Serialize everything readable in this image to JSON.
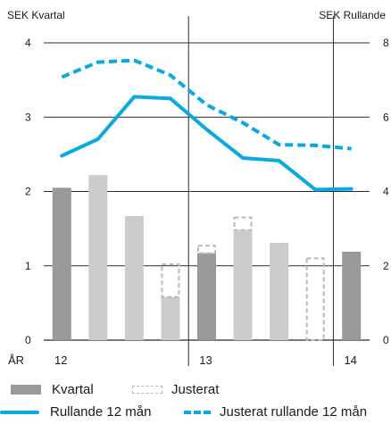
{
  "axes": {
    "left_title": "SEK Kvartal",
    "right_title": "SEK Rullande",
    "left_ticks": [
      "0",
      "1",
      "2",
      "3",
      "4"
    ],
    "right_ticks": [
      "0",
      "2",
      "4",
      "6",
      "8"
    ],
    "x_axis_label": "ÅR",
    "year_labels": [
      "12",
      "13",
      "14"
    ]
  },
  "legend": {
    "kvartal": "Kvartal",
    "justerat": "Justerat",
    "rullande": "Rullande 12 mån",
    "justerat_rullande": "Justerat rullande 12 mån"
  },
  "colors": {
    "bar_dark": "#98999b",
    "bar_light": "#cccccd",
    "adjusted_outline": "#b9b9b9",
    "line": "#0aa9df"
  },
  "chart_data": {
    "type": "bar",
    "categories": [
      "12 Q1",
      "12 Q2",
      "12 Q3",
      "12 Q4",
      "13 Q1",
      "13 Q2",
      "13 Q3",
      "13 Q4",
      "14 Q1"
    ],
    "years": [
      {
        "label": "12",
        "quarters": [
          0,
          1,
          2,
          3
        ]
      },
      {
        "label": "13",
        "quarters": [
          4,
          5,
          6,
          7
        ]
      },
      {
        "label": "14",
        "quarters": [
          8
        ]
      }
    ],
    "ylim_left": [
      0,
      4
    ],
    "ylim_right": [
      0,
      8
    ],
    "ylabel_left": "SEK Kvartal",
    "ylabel_right": "SEK Rullande",
    "grid": true,
    "legend_position": "bottom",
    "series": [
      {
        "name": "Kvartal",
        "axis": "left",
        "type": "bar",
        "values": [
          2.05,
          2.22,
          1.67,
          0.58,
          1.17,
          1.48,
          1.31,
          0.0,
          1.19
        ]
      },
      {
        "name": "Justerat",
        "axis": "left",
        "type": "bar-outline",
        "values": [
          null,
          null,
          null,
          1.02,
          1.27,
          1.65,
          null,
          1.1,
          null
        ]
      },
      {
        "name": "Rullande 12 mån",
        "axis": "right",
        "type": "line",
        "values": [
          4.96,
          5.41,
          6.55,
          6.5,
          5.67,
          4.9,
          4.83,
          4.05,
          4.07
        ]
      },
      {
        "name": "Justerat rullande 12 mån",
        "axis": "right",
        "type": "line-dashed",
        "values": [
          7.08,
          7.48,
          7.53,
          7.13,
          6.33,
          5.85,
          5.26,
          5.24,
          5.15
        ]
      }
    ]
  }
}
